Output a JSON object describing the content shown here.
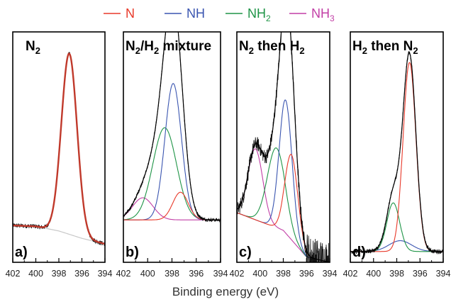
{
  "chart_data": {
    "type": "line",
    "xlabel": "Binding energy (eV)",
    "xlim": [
      402,
      394
    ],
    "x_ticks": [
      "402",
      "400",
      "398",
      "396",
      "394"
    ],
    "legend": [
      {
        "key": "N",
        "label": "N",
        "sub": "",
        "color": "#e8392a"
      },
      {
        "key": "NH",
        "label": "NH",
        "sub": "",
        "color": "#3a55b0"
      },
      {
        "key": "NH2",
        "label": "NH",
        "sub": "2",
        "color": "#1e9446"
      },
      {
        "key": "NH3",
        "label": "NH",
        "sub": "3",
        "color": "#c23fa6"
      }
    ],
    "panels": [
      {
        "letter": "a)",
        "title": [
          {
            "t": "N"
          },
          {
            "t": "2",
            "sub": true
          }
        ],
        "ylim": [
          0,
          1.25
        ],
        "background": [
          [
            402,
            0.2
          ],
          [
            400,
            0.195
          ],
          [
            398,
            0.17
          ],
          [
            396,
            0.13
          ],
          [
            394,
            0.1
          ]
        ],
        "peaks": [
          {
            "key": "N",
            "center": 397.1,
            "fwhm": 1.6,
            "height": 0.98,
            "color": "#e8392a"
          }
        ],
        "envelope_color": "#c0392b",
        "noise": 0.012
      },
      {
        "letter": "b)",
        "title": [
          {
            "t": "N"
          },
          {
            "t": "2",
            "sub": true
          },
          {
            "t": "/H"
          },
          {
            "t": "2",
            "sub": true
          },
          {
            "t": " mixture"
          }
        ],
        "ylim": [
          0,
          1.25
        ],
        "background": [
          [
            402,
            0.23
          ],
          [
            394,
            0.23
          ]
        ],
        "peaks": [
          {
            "key": "NH3",
            "center": 400.4,
            "fwhm": 2.0,
            "height": 0.12,
            "color": "#c23fa6"
          },
          {
            "key": "NH2",
            "center": 398.6,
            "fwhm": 2.3,
            "height": 0.5,
            "color": "#1e9446"
          },
          {
            "key": "NH",
            "center": 397.9,
            "fwhm": 1.6,
            "height": 0.74,
            "color": "#3a55b0"
          },
          {
            "key": "N",
            "center": 397.3,
            "fwhm": 1.5,
            "height": 0.15,
            "color": "#e8392a"
          }
        ],
        "envelope_color": "#000000",
        "noise": 0.01
      },
      {
        "letter": "c)",
        "title": [
          {
            "t": "N"
          },
          {
            "t": "2",
            "sub": true
          },
          {
            "t": " then H"
          },
          {
            "t": "2",
            "sub": true
          }
        ],
        "ylim": [
          0,
          1.3
        ],
        "background": [
          [
            402,
            0.28
          ],
          [
            398,
            0.18
          ],
          [
            396,
            0.03
          ],
          [
            394,
            0.0
          ]
        ],
        "peaks": [
          {
            "key": "NH3",
            "center": 400.4,
            "fwhm": 1.5,
            "height": 0.4,
            "color": "#c23fa6"
          },
          {
            "key": "NH2",
            "center": 398.6,
            "fwhm": 1.8,
            "height": 0.45,
            "color": "#1e9446"
          },
          {
            "key": "NH",
            "center": 397.8,
            "fwhm": 1.3,
            "height": 0.75,
            "color": "#3a55b0"
          },
          {
            "key": "N",
            "center": 397.3,
            "fwhm": 1.3,
            "height": 0.48,
            "color": "#e8392a"
          }
        ],
        "envelope_color": "#000000",
        "noise": 0.04
      },
      {
        "letter": "d)",
        "title": [
          {
            "t": "H"
          },
          {
            "t": "2",
            "sub": true
          },
          {
            "t": " then N"
          },
          {
            "t": "2",
            "sub": true
          }
        ],
        "ylim": [
          0,
          1.28
        ],
        "background": [
          [
            402,
            0.06
          ],
          [
            394,
            0.06
          ]
        ],
        "peaks": [
          {
            "key": "NH",
            "center": 397.7,
            "fwhm": 2.3,
            "height": 0.06,
            "color": "#3a55b0"
          },
          {
            "key": "NH2",
            "center": 398.3,
            "fwhm": 1.3,
            "height": 0.27,
            "color": "#1e9446"
          },
          {
            "key": "N",
            "center": 396.9,
            "fwhm": 1.3,
            "height": 1.05,
            "color": "#e8392a"
          }
        ],
        "envelope_color": "#000000",
        "noise": 0.012
      }
    ]
  }
}
